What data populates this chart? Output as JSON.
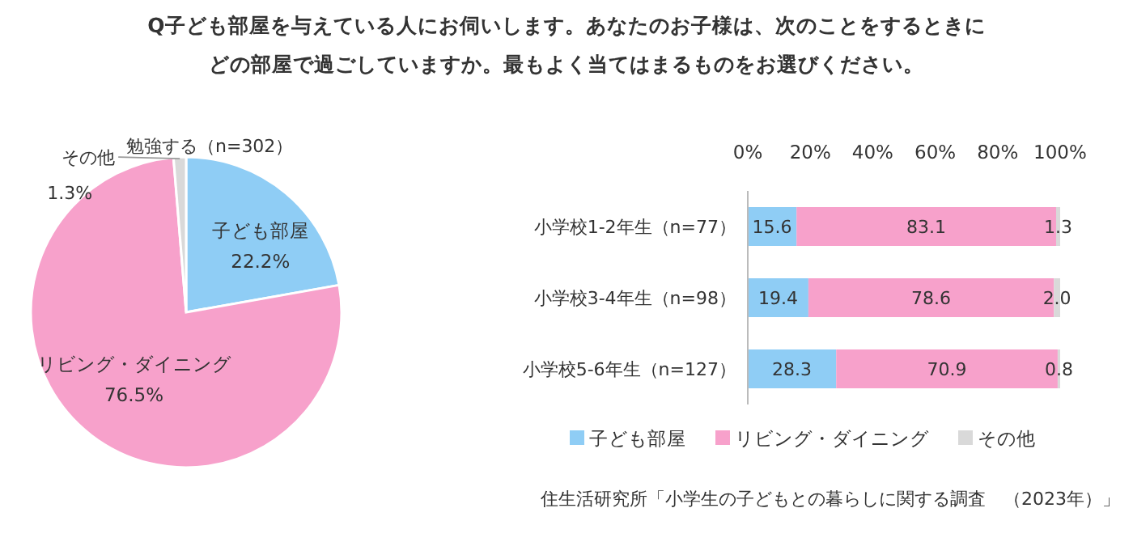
{
  "chart_data": [
    {
      "type": "pie",
      "title": "Q子ども部屋を与えている人にお伺いします。あなたのお子様は、次のことをするときにどの部屋で過ごしていますか。最もよく当てはまるものをお選びください。",
      "subtitle": "勉強する（n=302）",
      "categories": [
        "子ども部屋",
        "リビング・ダイニング",
        "その他"
      ],
      "values": [
        22.2,
        76.5,
        1.3
      ],
      "value_labels": [
        "22.2%",
        "76.5%",
        "1.3%"
      ],
      "colors": [
        "#8fcdf5",
        "#f7a1cb",
        "#d9d9d9"
      ]
    },
    {
      "type": "bar",
      "orientation": "horizontal",
      "stacked": true,
      "categories": [
        "小学校1-2年生（n=77）",
        "小学校3-4年生（n=98）",
        "小学校5-6年生（n=127）"
      ],
      "series": [
        {
          "name": "子ども部屋",
          "color": "#8fcdf5",
          "values": [
            15.6,
            19.4,
            28.3
          ],
          "value_labels": [
            "15.6",
            "19.4",
            "28.3"
          ]
        },
        {
          "name": "リビング・ダイニング",
          "color": "#f7a1cb",
          "values": [
            83.1,
            78.6,
            70.9
          ],
          "value_labels": [
            "83.1",
            "78.6",
            "70.9"
          ]
        },
        {
          "name": "その他",
          "color": "#d9d9d9",
          "values": [
            1.3,
            2.0,
            0.8
          ],
          "value_labels": [
            "1.3",
            "2.0",
            "0.8"
          ]
        }
      ],
      "xlim": [
        0,
        100
      ],
      "xticks": [
        {
          "value": 0,
          "label": "0%"
        },
        {
          "value": 20,
          "label": "20%"
        },
        {
          "value": 40,
          "label": "40%"
        },
        {
          "value": 60,
          "label": "60%"
        },
        {
          "value": 80,
          "label": "80%"
        },
        {
          "value": 100,
          "label": "100%"
        }
      ],
      "legend": "bottom",
      "annotations": [
        "住生活研究所「小学生の子どもとの暮らしに関する調査　（2023年）」"
      ]
    }
  ]
}
